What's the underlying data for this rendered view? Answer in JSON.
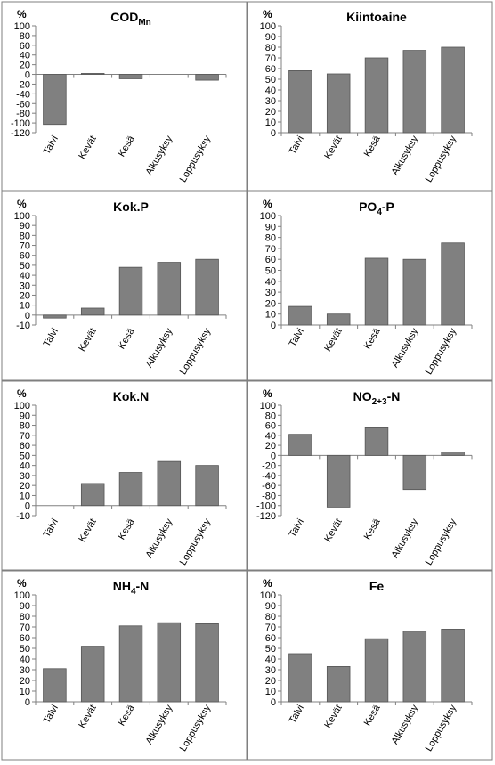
{
  "panels": [
    {
      "title_main": "COD",
      "title_sub": "Mn",
      "title_tail": "",
      "unit": "%",
      "chart_data": {
        "type": "bar",
        "categories": [
          "Talvi",
          "Kevät",
          "Kesä",
          "Alkusyksy",
          "Loppusyksy"
        ],
        "values": [
          -103,
          2,
          -9,
          0,
          -12
        ],
        "ylim": [
          -120,
          100
        ],
        "ystep": 20,
        "grid": false
      }
    },
    {
      "title_main": "Kiintoaine",
      "title_sub": "",
      "title_tail": "",
      "unit": "%",
      "chart_data": {
        "type": "bar",
        "categories": [
          "Talvi",
          "Kevät",
          "Kesä",
          "Alkusyksy",
          "Loppusyksy"
        ],
        "values": [
          58,
          55,
          70,
          77,
          80
        ],
        "ylim": [
          0,
          100
        ],
        "ystep": 10,
        "grid": false
      }
    },
    {
      "title_main": "Kok.P",
      "title_sub": "",
      "title_tail": "",
      "unit": "%",
      "chart_data": {
        "type": "bar",
        "categories": [
          "Talvi",
          "Kevät",
          "Kesä",
          "Alkusyksy",
          "Loppusyksy"
        ],
        "values": [
          -3,
          7,
          48,
          53,
          56
        ],
        "ylim": [
          -10,
          100
        ],
        "ystep": 10,
        "grid": false
      }
    },
    {
      "title_main": "PO",
      "title_sub": "4",
      "title_tail": "-P",
      "unit": "%",
      "chart_data": {
        "type": "bar",
        "categories": [
          "Talvi",
          "Kevät",
          "Kesä",
          "Alkusyksy",
          "Loppusyksy"
        ],
        "values": [
          17,
          10,
          61,
          60,
          75
        ],
        "ylim": [
          0,
          100
        ],
        "ystep": 10,
        "grid": false
      }
    },
    {
      "title_main": "Kok.N",
      "title_sub": "",
      "title_tail": "",
      "unit": "%",
      "chart_data": {
        "type": "bar",
        "categories": [
          "Talvi",
          "Kevät",
          "Kesä",
          "Alkusyksy",
          "Loppusyksy"
        ],
        "values": [
          0,
          22,
          33,
          44,
          40
        ],
        "ylim": [
          -10,
          100
        ],
        "ystep": 10,
        "grid": false
      }
    },
    {
      "title_main": "NO",
      "title_sub": "2+3",
      "title_tail": "-N",
      "unit": "%",
      "chart_data": {
        "type": "bar",
        "categories": [
          "Talvi",
          "Kevät",
          "Kesä",
          "Alkusyksy",
          "Loppusyksy"
        ],
        "values": [
          42,
          -103,
          55,
          -68,
          7
        ],
        "ylim": [
          -120,
          100
        ],
        "ystep": 20,
        "grid": false
      }
    },
    {
      "title_main": "NH",
      "title_sub": "4",
      "title_tail": "-N",
      "unit": "%",
      "chart_data": {
        "type": "bar",
        "categories": [
          "Talvi",
          "Kevät",
          "Kesä",
          "Alkusyksy",
          "Loppusyksy"
        ],
        "values": [
          31,
          52,
          71,
          74,
          73
        ],
        "ylim": [
          0,
          100
        ],
        "ystep": 10,
        "grid": false
      }
    },
    {
      "title_main": "Fe",
      "title_sub": "",
      "title_tail": "",
      "unit": "%",
      "chart_data": {
        "type": "bar",
        "categories": [
          "Talvi",
          "Kevät",
          "Kesä",
          "Alkusyksy",
          "Loppusyksy"
        ],
        "values": [
          45,
          33,
          59,
          66,
          68
        ],
        "ylim": [
          0,
          100
        ],
        "ystep": 10,
        "grid": false
      }
    }
  ],
  "colors": {
    "bar": "#808080",
    "bar_stroke": "#555555",
    "axis": "#808080",
    "text": "#000000",
    "border": "#7f7f7f"
  }
}
